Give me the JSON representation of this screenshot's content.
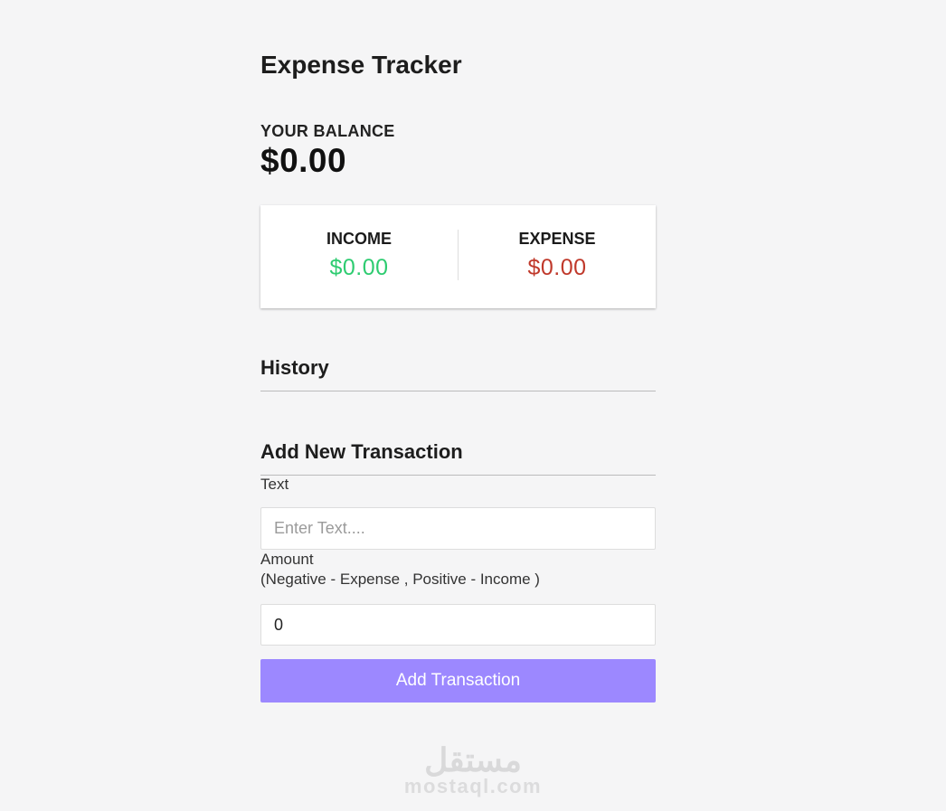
{
  "app": {
    "title": "Expense Tracker",
    "background_color": "#f5f5f6"
  },
  "balance": {
    "label": "YOUR BALANCE",
    "value": "$0.00"
  },
  "summary": {
    "income": {
      "label": "INCOME",
      "value": "$0.00",
      "color": "#2ecc71"
    },
    "expense": {
      "label": "EXPENSE",
      "value": "$0.00",
      "color": "#c0392b"
    }
  },
  "history": {
    "heading": "History",
    "items": []
  },
  "form": {
    "heading": "Add New Transaction",
    "text_label": "Text",
    "text_placeholder": "Enter Text....",
    "amount_label": "Amount",
    "amount_hint": "(Negative - Expense , Positive - Income )",
    "amount_value": "0",
    "submit_label": "Add Transaction",
    "button_color": "#9c88ff"
  },
  "watermark": {
    "logo": "مستقل",
    "domain": "mostaql.com"
  }
}
